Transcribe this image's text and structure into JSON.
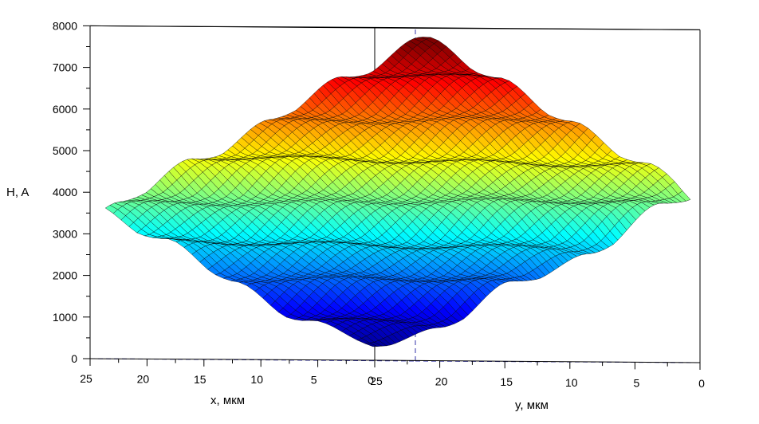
{
  "chart_data": {
    "type": "surface3d",
    "zlabel": "H, A",
    "xlabel": "x, мкм",
    "ylabel": "y, мкм",
    "zlim": [
      0,
      8000
    ],
    "xlim": [
      0,
      25
    ],
    "ylim": [
      0,
      25
    ],
    "z_ticks": [
      "0",
      "1000",
      "2000",
      "3000",
      "4000",
      "5000",
      "6000",
      "7000",
      "8000"
    ],
    "x_ticks": [
      "25",
      "20",
      "15",
      "10",
      "5",
      "0"
    ],
    "y_ticks": [
      "25",
      "20",
      "15",
      "10",
      "5",
      "0"
    ],
    "terrace_heights": [
      300,
      1000,
      1900,
      2800,
      3800,
      4800,
      5800,
      6800,
      7800
    ],
    "colormap": [
      "#00008f",
      "#0000ff",
      "#0080ff",
      "#00ffff",
      "#80ff80",
      "#ffff00",
      "#ff8000",
      "#ff0000",
      "#800000"
    ],
    "grid": false,
    "box": true
  }
}
